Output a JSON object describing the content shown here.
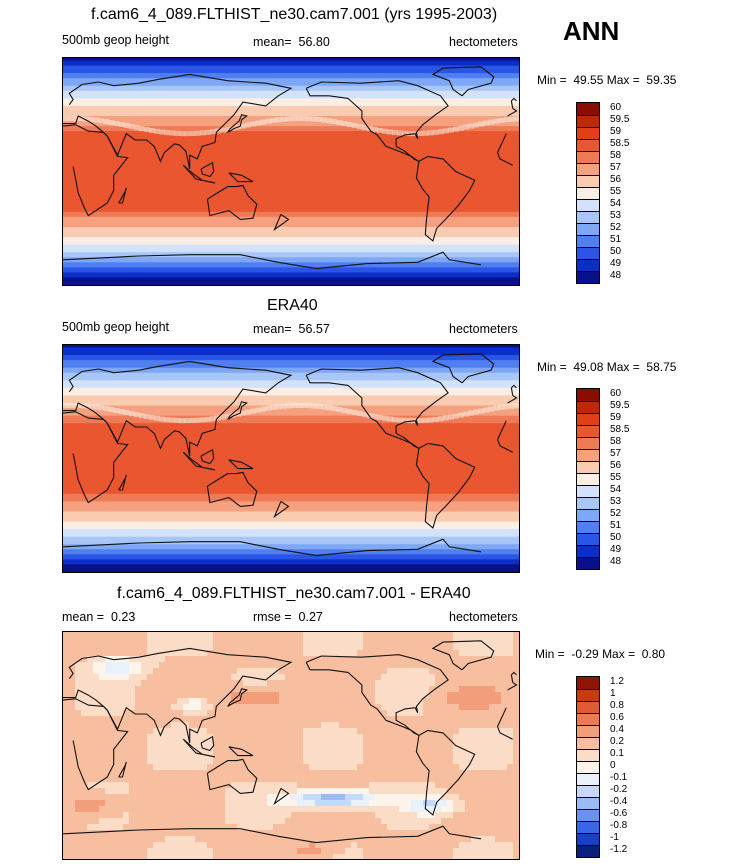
{
  "page": {
    "season": "ANN"
  },
  "colors": {
    "abs_scale": [
      "#08108a",
      "#0a2fc8",
      "#2a55e6",
      "#4f7ff0",
      "#7ea7f5",
      "#a9c6f8",
      "#d2e2fb",
      "#fbeee4",
      "#f9ccb2",
      "#f5a07e",
      "#ef7a56",
      "#e9562f",
      "#e23e18",
      "#c02708",
      "#8b0d02"
    ],
    "diff_scale": [
      "#0a1f7a",
      "#1a3ec4",
      "#3a65e6",
      "#6a92ef",
      "#9bbbf6",
      "#c5dafa",
      "#e9f1fd",
      "#fdf4ec",
      "#fbdcc7",
      "#f8bea0",
      "#f39e7b",
      "#ec7a56",
      "#e05a33",
      "#c63a14",
      "#8e1404"
    ]
  },
  "chart_data": [
    {
      "type": "heatmap",
      "title": "f.cam6_4_089.FLTHIST_ne30.cam7.001 (yrs 1995-2003)",
      "field_label": "500mb geop height",
      "mean_label": "mean=",
      "mean": "56.80",
      "units": "hectometers",
      "min_label": "Min =",
      "min": "49.55",
      "max_label": "Max =",
      "max": "59.35",
      "colorbar_ticks": [
        "60",
        "59.5",
        "59",
        "58.5",
        "58",
        "57",
        "56",
        "55",
        "54",
        "53",
        "52",
        "51",
        "50",
        "49",
        "48"
      ]
    },
    {
      "type": "heatmap",
      "title": "ERA40",
      "field_label": "500mb geop height",
      "mean_label": "mean=",
      "mean": "56.57",
      "units": "hectometers",
      "min_label": "Min =",
      "min": "49.08",
      "max_label": "Max =",
      "max": "58.75",
      "colorbar_ticks": [
        "60",
        "59.5",
        "59",
        "58.5",
        "58",
        "57",
        "56",
        "55",
        "54",
        "53",
        "52",
        "51",
        "50",
        "49",
        "48"
      ]
    },
    {
      "type": "heatmap",
      "title": "f.cam6_4_089.FLTHIST_ne30.cam7.001 - ERA40",
      "mean_label": "mean =",
      "mean": "0.23",
      "rmse_label": "rmse =",
      "rmse": "0.27",
      "units": "hectometers",
      "min_label": "Min =",
      "min": "-0.29",
      "max_label": "Max =",
      "max": "0.80",
      "colorbar_ticks": [
        "1.2",
        "1",
        "0.8",
        "0.6",
        "0.4",
        "0.2",
        "0.1",
        "0",
        "-0.1",
        "-0.2",
        "-0.4",
        "-0.6",
        "-0.8",
        "-1",
        "-1.2"
      ]
    }
  ]
}
